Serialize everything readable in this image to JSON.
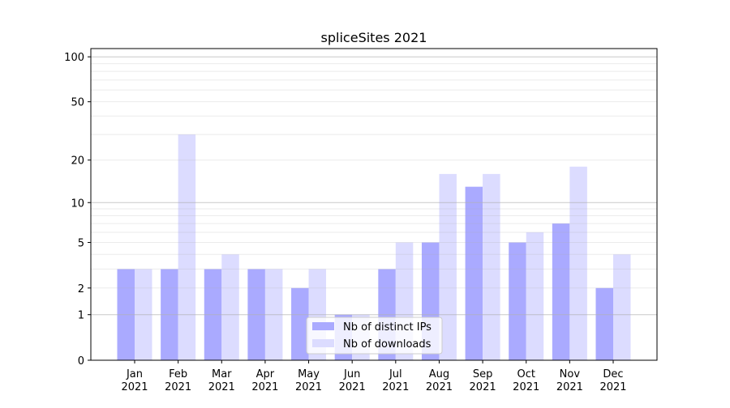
{
  "chart_data": {
    "type": "bar",
    "title": "spliceSites 2021",
    "xlabel": "",
    "ylabel": "",
    "yscale": "log(1+x)",
    "ylim": [
      0,
      113
    ],
    "categories": [
      "Jan\n2021",
      "Feb\n2021",
      "Mar\n2021",
      "Apr\n2021",
      "May\n2021",
      "Jun\n2021",
      "Jul\n2021",
      "Aug\n2021",
      "Sep\n2021",
      "Oct\n2021",
      "Nov\n2021",
      "Dec\n2021"
    ],
    "yticks": [
      0,
      1,
      2,
      5,
      10,
      20,
      50,
      100
    ],
    "series": [
      {
        "name": "Nb of distinct IPs",
        "color": "#aaaaff",
        "values": [
          3,
          3,
          3,
          3,
          2,
          1,
          3,
          5,
          13,
          5,
          7,
          2
        ]
      },
      {
        "name": "Nb of downloads",
        "color": "#dcdcff",
        "values": [
          3,
          30,
          4,
          3,
          3,
          1,
          5,
          16,
          16,
          6,
          18,
          4
        ]
      }
    ],
    "grid": true,
    "legend": "bottom-center"
  }
}
